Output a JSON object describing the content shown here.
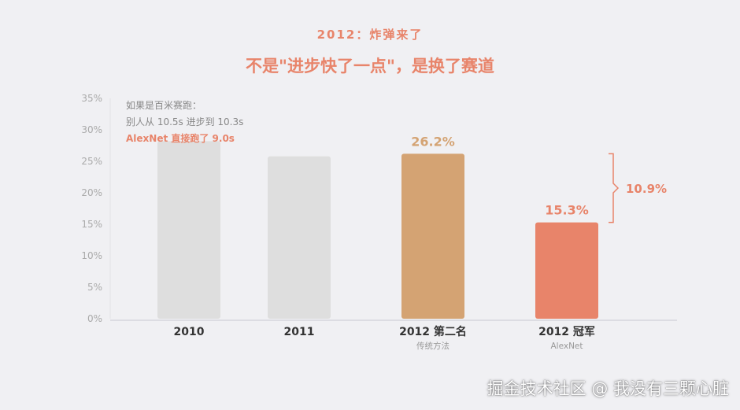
{
  "kicker": "2012：炸弹来了",
  "title": "不是\"进步快了一点\"，是换了赛道",
  "note": {
    "line1": "如果是百米赛跑：",
    "line2": "别人从 10.5s 进步到 10.3s",
    "line3": "AlexNet 直接跑了 9.0s"
  },
  "watermark": "掘金技术社区 @ 我没有三颗心脏",
  "colors": {
    "gray_bar": "#dedede",
    "tan_bar": "#d4a373",
    "coral_bar": "#e8846a",
    "axis_text": "#aaaaaa"
  },
  "chart_data": {
    "type": "bar",
    "categories": [
      "2010",
      "2011",
      "2012 第二名",
      "2012 冠军"
    ],
    "sublabels": [
      "",
      "",
      "传统方法",
      "AlexNet"
    ],
    "values": [
      28.2,
      25.8,
      26.2,
      15.3
    ],
    "value_labels": [
      "",
      "",
      "26.2%",
      "15.3%"
    ],
    "bar_colors": [
      "#dedede",
      "#dedede",
      "#d4a373",
      "#e8846a"
    ],
    "label_colors": [
      "",
      "",
      "#d4a373",
      "#e8846a"
    ],
    "yticks": [
      "0%",
      "5%",
      "10%",
      "15%",
      "20%",
      "25%",
      "30%",
      "35%"
    ],
    "ylim": [
      0,
      35
    ],
    "annotation": {
      "text": "10.9%",
      "from": 26.2,
      "to": 15.3
    },
    "title": "不是\"进步快了一点\"，是换了赛道",
    "xlabel": "",
    "ylabel": ""
  }
}
